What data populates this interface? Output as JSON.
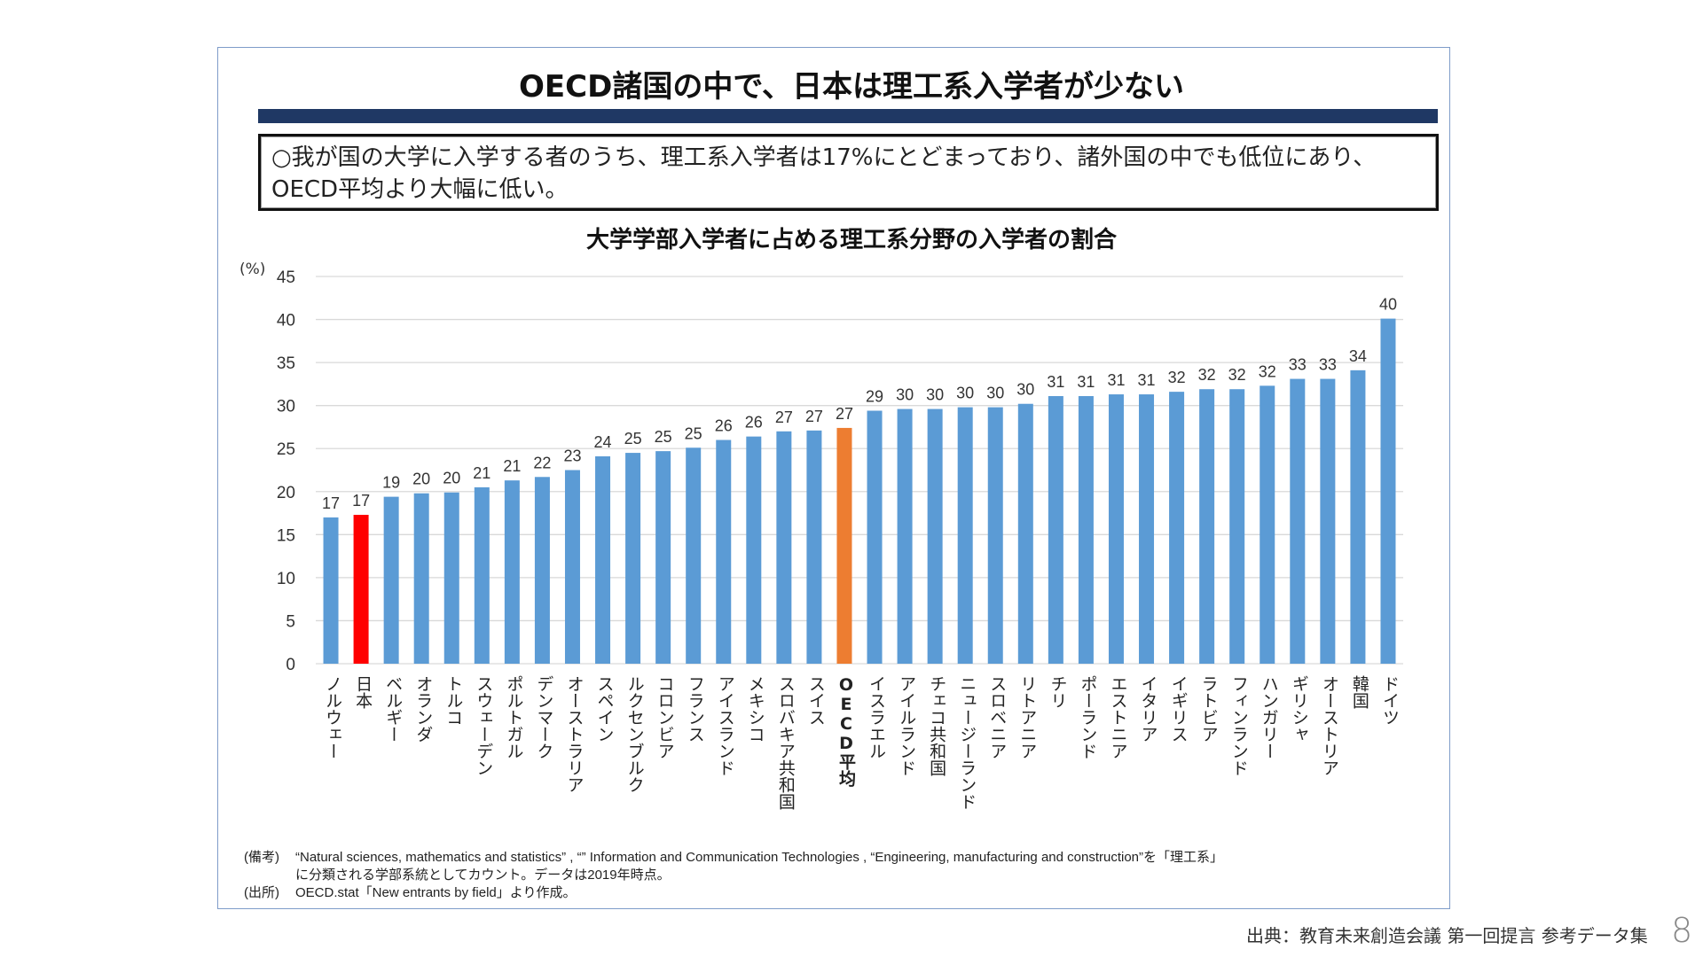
{
  "slide": {
    "title": "OECD諸国の中で、日本は理工系入学者が少ない",
    "summary": "○我が国の大学に入学する者のうち、理工系入学者は17%にとどまっており、諸外国の中でも低位にあり、OECD平均より大幅に低い。",
    "footer_source": "出典：教育未来創造会議 第一回提言 参考データ集",
    "page_number": "8"
  },
  "notes": {
    "remarks_tag": "(備考)",
    "remarks_line1": "“Natural sciences, mathematics and statistics” , “” Information and Communication Technologies , “Engineering, manufacturing and construction”を「理工系」",
    "remarks_line2": "に分類される学部系統としてカウント。データは2019年時点。",
    "source_tag": "(出所)",
    "source_text": "OECD.stat「New entrants by field」より作成。"
  },
  "colors": {
    "default_bar": "#5b9bd5",
    "japan_bar": "#ff0000",
    "oecd_bar": "#ed7d31",
    "gridline": "#d9d9d9",
    "title_bar": "#1f3864"
  },
  "chart_data": {
    "type": "bar",
    "title": "大学学部入学者に占める理工系分野の入学者の割合",
    "ylabel": "(%)",
    "xlabel": "",
    "ylim": [
      0,
      45
    ],
    "yticks": [
      0,
      5,
      10,
      15,
      20,
      25,
      30,
      35,
      40,
      45
    ],
    "grid": true,
    "legend": "none",
    "categories": [
      "ノルウェー",
      "日本",
      "ベルギー",
      "オランダ",
      "トルコ",
      "スウェーデン",
      "ポルトガル",
      "デンマーク",
      "オーストラリア",
      "スペイン",
      "ルクセンブルク",
      "コロンビア",
      "フランス",
      "アイスランド",
      "メキシコ",
      "スロバキア共和国",
      "スイス",
      "OECD平均",
      "イスラエル",
      "アイルランド",
      "チェコ共和国",
      "ニュージーランド",
      "スロベニア",
      "リトアニア",
      "チリ",
      "ポーランド",
      "エストニア",
      "イタリア",
      "イギリス",
      "ラトビア",
      "フィンランド",
      "ハンガリー",
      "ギリシャ",
      "オーストリア",
      "韓国",
      "ドイツ"
    ],
    "values": [
      17.0,
      17.3,
      19.4,
      19.8,
      19.9,
      20.5,
      21.3,
      21.7,
      22.5,
      24.1,
      24.5,
      24.7,
      25.1,
      26.0,
      26.4,
      27.0,
      27.1,
      27.4,
      29.4,
      29.6,
      29.6,
      29.8,
      29.8,
      30.2,
      31.1,
      31.1,
      31.3,
      31.3,
      31.6,
      31.9,
      31.9,
      32.3,
      33.1,
      33.1,
      34.1,
      40.1
    ],
    "labels": [
      "17",
      "17",
      "19",
      "20",
      "20",
      "21",
      "21",
      "22",
      "23",
      "24",
      "25",
      "25",
      "25",
      "26",
      "26",
      "27",
      "27",
      "27",
      "29",
      "30",
      "30",
      "30",
      "30",
      "30",
      "31",
      "31",
      "31",
      "31",
      "32",
      "32",
      "32",
      "32",
      "33",
      "33",
      "34",
      "40"
    ],
    "highlight": {
      "日本": "japan_bar",
      "OECD平均": "oecd_bar"
    }
  }
}
